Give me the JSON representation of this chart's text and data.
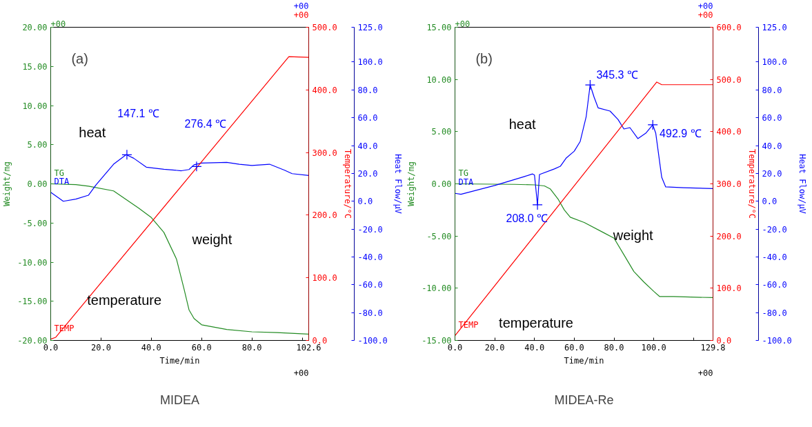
{
  "chart_data": [
    {
      "type": "line",
      "title": "MIDEA",
      "subtitle": "(a)",
      "xlabel": "Time/min",
      "ylabel": "Weight/mg",
      "y2label": "Temperature/°C",
      "y3label": "Heat Flow/μV",
      "xlim": [
        0,
        102.6
      ],
      "xticks": [
        {
          "value": 0,
          "label": "0.0"
        },
        {
          "value": 20,
          "label": "20.0"
        },
        {
          "value": 40,
          "label": "40.0"
        },
        {
          "value": 60,
          "label": "60.0"
        },
        {
          "value": 80,
          "label": "80.0"
        },
        {
          "value": 100,
          "label": null
        },
        {
          "value": 102.6,
          "label": "102.6"
        }
      ],
      "ylim": [
        -20,
        20
      ],
      "yticks": [
        {
          "value": -20,
          "label": "-20.00"
        },
        {
          "value": -15,
          "label": "-15.00"
        },
        {
          "value": -10,
          "label": "-10.00"
        },
        {
          "value": -5,
          "label": "-5.00"
        },
        {
          "value": 0,
          "label": "0.00"
        },
        {
          "value": 5,
          "label": "5.00"
        },
        {
          "value": 10,
          "label": "10.00"
        },
        {
          "value": 15,
          "label": "15.00"
        },
        {
          "value": 20,
          "label": "20.00"
        }
      ],
      "y2lim": [
        0,
        500
      ],
      "y2ticks": [
        {
          "value": 0,
          "label": "0.0"
        },
        {
          "value": 100,
          "label": "100.0"
        },
        {
          "value": 200,
          "label": "200.0"
        },
        {
          "value": 300,
          "label": "300.0"
        },
        {
          "value": 400,
          "label": "400.0"
        },
        {
          "value": 500,
          "label": "500.0"
        }
      ],
      "y3lim": [
        -100,
        125
      ],
      "y3ticks": [
        {
          "value": -100,
          "label": "-100.0"
        },
        {
          "value": -80,
          "label": "-80.0"
        },
        {
          "value": -60,
          "label": "-60.0"
        },
        {
          "value": -40,
          "label": "-40.0"
        },
        {
          "value": -20,
          "label": "-20.0"
        },
        {
          "value": 0,
          "label": "0.0"
        },
        {
          "value": 20,
          "label": "20.0"
        },
        {
          "value": 40,
          "label": "40.0"
        },
        {
          "value": 60,
          "label": "60.0"
        },
        {
          "value": 80,
          "label": "80.0"
        },
        {
          "value": 100,
          "label": "100.0"
        },
        {
          "value": 125,
          "label": "125.0"
        }
      ],
      "series": [
        {
          "name": "TG",
          "color": "#228b22",
          "x": [
            0,
            10,
            15,
            25,
            35,
            40,
            45,
            50,
            53,
            55,
            57,
            60,
            70,
            80,
            90,
            102.6
          ],
          "values": [
            0,
            -0.1,
            -0.3,
            -0.9,
            -3.1,
            -4.3,
            -6.2,
            -9.6,
            -13.4,
            -16.1,
            -17.2,
            -18.0,
            -18.6,
            -18.9,
            -19.0,
            -19.2
          ]
        },
        {
          "name": "DTA",
          "color": "#0000ff",
          "axis": "y3",
          "x": [
            0,
            5,
            10,
            15,
            18,
            25,
            30,
            33,
            38,
            45,
            52,
            55,
            57,
            60,
            70,
            75,
            80,
            87,
            93,
            96,
            102.6
          ],
          "values": [
            6.4,
            0,
            1.5,
            4.3,
            11.7,
            26.6,
            33.4,
            30.9,
            24.5,
            23,
            21.9,
            22.8,
            26.2,
            27.4,
            27.9,
            26.6,
            25.7,
            26.6,
            22.3,
            19.8,
            18.5
          ]
        },
        {
          "name": "TEMP",
          "color": "#ff0000",
          "axis": "y2",
          "x": [
            0,
            2,
            94.7,
            102.6
          ],
          "values": [
            2,
            5,
            453,
            452
          ]
        },
        {
          "type": "scatter",
          "marker": "cross",
          "color": "#0000ff",
          "axis": "y3",
          "x": [
            30.3,
            58
          ],
          "values": [
            33.4,
            25
          ]
        }
      ],
      "annotations": [
        "147.1 ℃",
        "276.4 ℃",
        "heat",
        "weight",
        "temperature",
        "+00",
        "+00",
        "+00",
        "+00"
      ]
    },
    {
      "type": "line",
      "title": "MIDEA-Re",
      "subtitle": "(b)",
      "xlabel": "Time/min",
      "ylabel": "Weight/mg",
      "y2label": "Temperature/°C",
      "y3label": "Heat Flow/μV",
      "xlim": [
        0,
        129.8
      ],
      "xticks": [
        {
          "value": 0,
          "label": "0.0"
        },
        {
          "value": 20,
          "label": "20.0"
        },
        {
          "value": 40,
          "label": "40.0"
        },
        {
          "value": 60,
          "label": "60.0"
        },
        {
          "value": 80,
          "label": "80.0"
        },
        {
          "value": 100,
          "label": "100.0"
        },
        {
          "value": 120,
          "label": null
        },
        {
          "value": 129.8,
          "label": "129.8"
        }
      ],
      "ylim": [
        -15,
        15
      ],
      "yticks": [
        {
          "value": -15,
          "label": "-15.00"
        },
        {
          "value": -10,
          "label": "-10.00"
        },
        {
          "value": -5,
          "label": "-5.00"
        },
        {
          "value": 0,
          "label": "0.00"
        },
        {
          "value": 5,
          "label": "5.00"
        },
        {
          "value": 10,
          "label": "10.00"
        },
        {
          "value": 15,
          "label": "15.00"
        }
      ],
      "y2lim": [
        0,
        600
      ],
      "y2ticks": [
        {
          "value": 0,
          "label": "0.0"
        },
        {
          "value": 100,
          "label": "100.0"
        },
        {
          "value": 200,
          "label": "200.0"
        },
        {
          "value": 300,
          "label": "300.0"
        },
        {
          "value": 400,
          "label": "400.0"
        },
        {
          "value": 500,
          "label": "500.0"
        },
        {
          "value": 600,
          "label": "600.0"
        }
      ],
      "y3lim": [
        -100,
        125
      ],
      "y3ticks": [
        {
          "value": -100,
          "label": "-100.0"
        },
        {
          "value": -80,
          "label": "-80.0"
        },
        {
          "value": -60,
          "label": "-60.0"
        },
        {
          "value": -40,
          "label": "-40.0"
        },
        {
          "value": -20,
          "label": "-20.0"
        },
        {
          "value": 0,
          "label": "0.0"
        },
        {
          "value": 20,
          "label": "20.0"
        },
        {
          "value": 40,
          "label": "40.0"
        },
        {
          "value": 60,
          "label": "60.0"
        },
        {
          "value": 80,
          "label": "80.0"
        },
        {
          "value": 100,
          "label": "100.0"
        },
        {
          "value": 125,
          "label": "125.0"
        }
      ],
      "series": [
        {
          "name": "TG",
          "color": "#228b22",
          "x": [
            0,
            30,
            40,
            45,
            48,
            52,
            55,
            58,
            65,
            75,
            80,
            85,
            90,
            95,
            100,
            103,
            110,
            129.8
          ],
          "values": [
            0,
            -0.05,
            -0.1,
            -0.2,
            -0.5,
            -1.5,
            -2.5,
            -3.2,
            -3.7,
            -4.7,
            -5.2,
            -6.8,
            -8.4,
            -9.4,
            -10.3,
            -10.8,
            -10.8,
            -10.9
          ]
        },
        {
          "name": "DTA",
          "color": "#0000ff",
          "axis": "y3",
          "x": [
            0,
            3,
            20,
            35,
            39,
            40,
            41.5,
            42.5,
            50,
            53,
            56,
            60,
            63,
            66,
            68,
            70,
            72,
            78,
            82,
            85,
            88,
            92,
            96,
            99.5,
            101,
            104,
            106,
            115,
            129.8
          ],
          "values": [
            5.7,
            5,
            11.3,
            17.8,
            19.6,
            18.8,
            -2.6,
            19.2,
            23.2,
            25.1,
            31.1,
            36,
            43,
            60.8,
            83.6,
            74.7,
            67.1,
            64.8,
            58.8,
            51.9,
            52.9,
            45,
            48.9,
            54.9,
            48.9,
            17.2,
            10.3,
            9.7,
            9.1
          ]
        },
        {
          "name": "TEMP",
          "color": "#ff0000",
          "axis": "y2",
          "x": [
            0,
            101.5,
            104,
            129.8
          ],
          "values": [
            9,
            495,
            490,
            490
          ]
        },
        {
          "type": "scatter",
          "marker": "cross",
          "color": "#0000ff",
          "axis": "y3",
          "x": [
            41.5,
            68,
            99.5
          ],
          "values": [
            -2.6,
            83.6,
            54.9
          ]
        }
      ],
      "annotations": [
        "208.0 ℃",
        "345.3 ℃",
        "492.9 ℃",
        "heat",
        "weight",
        "temperature",
        "+00",
        "+00",
        "+00",
        "+00"
      ]
    }
  ]
}
